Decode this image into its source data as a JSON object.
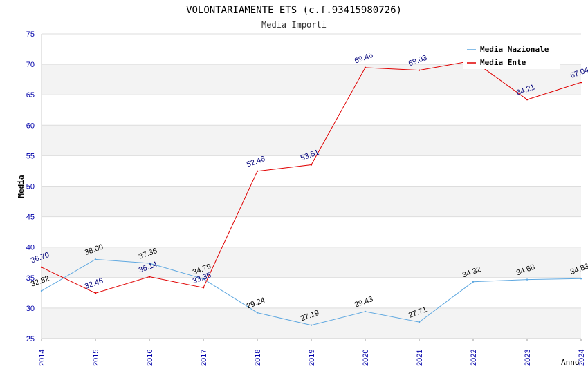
{
  "chart_data": {
    "type": "line",
    "title": "VOLONTARIAMENTE ETS (c.f.93415980726)",
    "subtitle": "Media Importi",
    "ylabel": "Media",
    "xlabel": "Anno",
    "x": [
      "2014",
      "2015",
      "2016",
      "2017",
      "2018",
      "2019",
      "2020",
      "2021",
      "2022",
      "2023",
      "2024"
    ],
    "ylim": [
      25,
      75
    ],
    "yticks": [
      "25",
      "30",
      "35",
      "40",
      "45",
      "50",
      "55",
      "60",
      "65",
      "70",
      "75"
    ],
    "grid": "horizontal bands",
    "legend_position": "top-right",
    "series": [
      {
        "name": "Media Nazionale",
        "color": "#5fa8e0",
        "values": [
          32.82,
          38.0,
          37.36,
          34.79,
          29.24,
          27.19,
          29.43,
          27.71,
          34.32,
          34.68,
          34.83
        ],
        "labels": [
          "32.82",
          "38.00",
          "37.36",
          "34.79",
          "29.24",
          "27.19",
          "29.43",
          "27.71",
          "34.32",
          "34.68",
          "34.83"
        ]
      },
      {
        "name": "Media Ente",
        "color": "#e00000",
        "values": [
          36.7,
          32.46,
          35.14,
          33.35,
          52.46,
          53.51,
          69.46,
          69.03,
          70.6,
          64.21,
          67.04
        ],
        "labels": [
          "36.70",
          "32.46",
          "35.14",
          "33.35",
          "52.46",
          "53.51",
          "69.46",
          "69.03",
          "",
          "64.21",
          "67.04"
        ]
      }
    ]
  }
}
